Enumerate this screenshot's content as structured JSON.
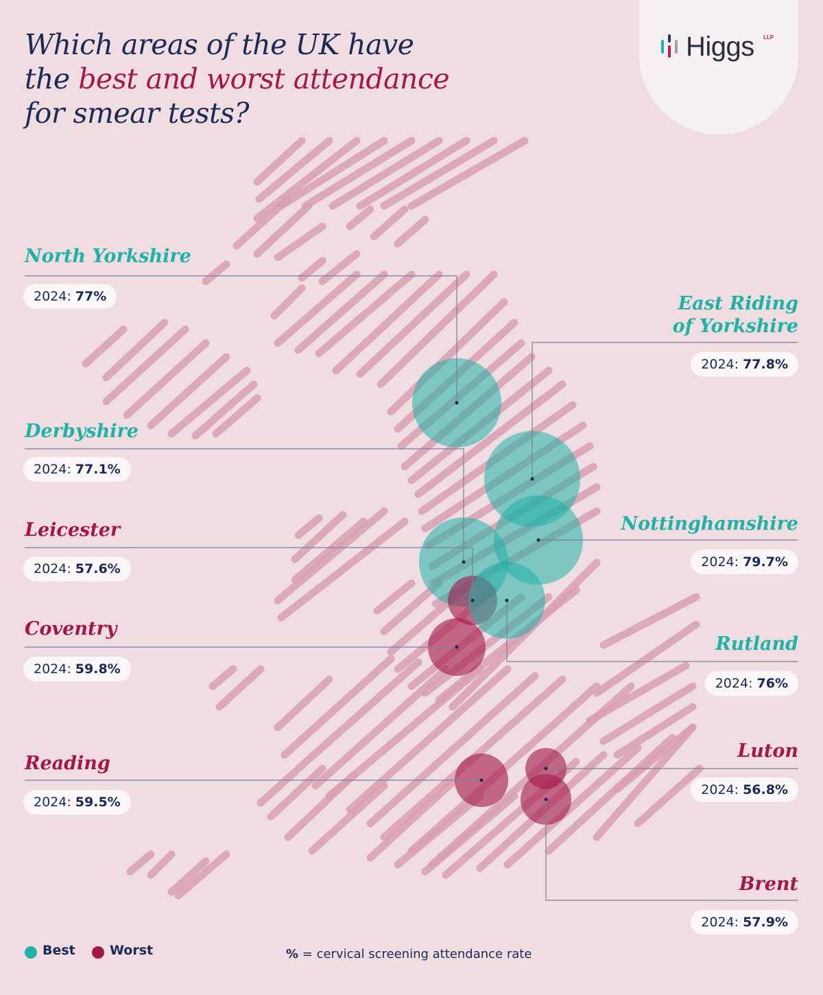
{
  "title": {
    "line1": "Which areas of the UK have",
    "line2_prefix": "the ",
    "line2_highlight": "best and worst attendance",
    "line3": "for smear tests?"
  },
  "logo": {
    "text": "Higgs",
    "suffix": "LLP"
  },
  "colors": {
    "best": "#1fb2a5",
    "worst": "#a3174a",
    "map_stripes": "#d9a0b2",
    "background": "#efdde2",
    "text": "#1b2a55"
  },
  "value_prefix": "2024: ",
  "regions": [
    {
      "key": "north_yorkshire",
      "name": "North Yorkshire",
      "group": "best",
      "value": "77%"
    },
    {
      "key": "east_riding",
      "name_lines": [
        "East Riding",
        "of Yorkshire"
      ],
      "group": "best",
      "value": "77.8%"
    },
    {
      "key": "derbyshire",
      "name": "Derbyshire",
      "group": "best",
      "value": "77.1%"
    },
    {
      "key": "leicester",
      "name": "Leicester",
      "group": "worst",
      "value": "57.6%"
    },
    {
      "key": "nottinghamshire",
      "name": "Nottinghamshire",
      "group": "best",
      "value": "79.7%"
    },
    {
      "key": "coventry",
      "name": "Coventry",
      "group": "worst",
      "value": "59.8%"
    },
    {
      "key": "rutland",
      "name": "Rutland",
      "group": "best",
      "value": "76%"
    },
    {
      "key": "reading",
      "name": "Reading",
      "group": "worst",
      "value": "59.5%"
    },
    {
      "key": "luton",
      "name": "Luton",
      "group": "worst",
      "value": "56.8%"
    },
    {
      "key": "brent",
      "name": "Brent",
      "group": "worst",
      "value": "57.9%"
    }
  ],
  "legend": {
    "best": "Best",
    "worst": "Worst"
  },
  "footnote": {
    "symbol": "%",
    "text": " = cervical screening attendance rate"
  }
}
